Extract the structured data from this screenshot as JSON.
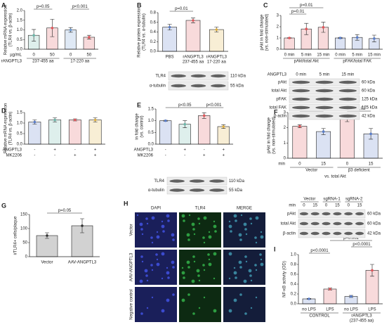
{
  "panel_labels": [
    "A",
    "B",
    "C",
    "D",
    "E",
    "F",
    "G",
    "H",
    "I"
  ],
  "chart_data": [
    {
      "type": "bar",
      "y_label": [
        "Relative mRNA expression",
        "(TLR4 vs. β-actin)"
      ],
      "categories": [
        "0",
        "50",
        "0",
        "50"
      ],
      "cat_label": "µg/mL",
      "groups": [
        "237-455 aa",
        "17-220 aa"
      ],
      "group_label": "rANGPTL3",
      "values": [
        0.72,
        1.1,
        1.0,
        0.62
      ],
      "errors": [
        0.3,
        0.45,
        0.12,
        0.1
      ],
      "colors": [
        "#6bb5a8",
        "#e0565b",
        "#6d9bd1",
        "#e0565b"
      ],
      "ylim": [
        0,
        2
      ],
      "yticks": [
        {
          "value": 0,
          "label": "0.0"
        },
        0.5,
        {
          "value": 1,
          "label": "1.0"
        },
        1.5,
        {
          "value": 2,
          "label": "2.0"
        }
      ],
      "annotations": [
        "p=0.05",
        "p<0.001"
      ]
    },
    {
      "type": "bar",
      "y_label": [
        "Relative protein expression",
        "(TLR4 vs. α-tubulin)"
      ],
      "categories": [
        [
          "PBS"
        ],
        [
          "rANGPTL3",
          "237-455 aa"
        ],
        [
          "rANGPTL3",
          "17-220 aa"
        ]
      ],
      "values": [
        0.5,
        0.64,
        0.45
      ],
      "errors": [
        0.06,
        0.05,
        0.05
      ],
      "colors": [
        "#5a7dc8",
        "#e0565b",
        "#e0b040"
      ],
      "ylim": [
        0,
        0.8
      ],
      "yticks": [
        {
          "value": 0,
          "label": "0.0"
        },
        0.2,
        0.4,
        0.6,
        0.8
      ],
      "annotations": [
        "p=0.01"
      ]
    },
    {
      "type": "bar",
      "y_label": [
        "pAkt in fold change",
        "(vs. non-stimulated)"
      ],
      "categories": [
        "0 min",
        "5 min",
        "15 min",
        "0 min",
        "5 min",
        "15 min"
      ],
      "groups": [
        "pAkt/total Akt",
        "pFAK/total FAK"
      ],
      "values": [
        1,
        1.8,
        1.95,
        1.0,
        1.05,
        0.95
      ],
      "errors": [
        0.02,
        0.5,
        0.45,
        0.05,
        0.25,
        0.3
      ],
      "colors": [
        "#e0565b",
        "#e0565b",
        "#e0565b",
        "#5a7dc8",
        "#5a7dc8",
        "#5a7dc8"
      ],
      "ylim": [
        0,
        3
      ],
      "yticks": [
        0,
        1,
        2,
        3
      ],
      "annotations": [
        "p=0.01",
        "p=0.01"
      ]
    },
    {
      "type": "bar",
      "y_label": [
        "Relative mRNA expression",
        "(TLR4 vs. β-actin)"
      ],
      "values": [
        1.05,
        1.15,
        1.15,
        1.15
      ],
      "errors": [
        0.1,
        0.1,
        0.05,
        0.1
      ],
      "colors": [
        "#5a7dc8",
        "#6bb5a8",
        "#e0565b",
        "#e0b040"
      ],
      "ylim": [
        0,
        1.5
      ],
      "yticks": [
        {
          "value": 0,
          "label": "0.0"
        },
        0.5,
        {
          "value": 1,
          "label": "1.0"
        },
        1.5
      ],
      "rows": [
        {
          "label": "ANGPTL3",
          "cells": [
            "-",
            "+",
            "-",
            "+"
          ]
        },
        {
          "label": "MK2206",
          "cells": [
            "-",
            "-",
            "+",
            "+"
          ]
        }
      ],
      "annotations": []
    },
    {
      "type": "bar",
      "y_label": [
        "in fold change",
        "(vs. control)"
      ],
      "values": [
        1.0,
        0.85,
        1.22,
        0.75
      ],
      "errors": [
        0.02,
        0.15,
        0.12,
        0.08
      ],
      "colors": [
        "#5a7dc8",
        "#6bb5a8",
        "#e0565b",
        "#e0b040"
      ],
      "ylim": [
        0,
        1.5
      ],
      "yticks": [
        {
          "value": 0,
          "label": "0.0"
        },
        0.5,
        {
          "value": 1,
          "label": "1.0"
        },
        1.5
      ],
      "rows": [
        {
          "label": "ANGPTL3",
          "cells": [
            "-",
            "+",
            "-",
            "+"
          ]
        },
        {
          "label": "MK2206",
          "cells": [
            "-",
            "-",
            "+",
            "+"
          ]
        }
      ],
      "annotations": [
        "p<0.05",
        "p<0.001"
      ]
    },
    {
      "type": "bar",
      "y_label": [
        "pAkt in fold change",
        "(vs. non-stimulated)"
      ],
      "categories": [
        "0",
        "15",
        "0",
        "15"
      ],
      "cat_label": "min",
      "groups": [
        "Vector",
        "β3 deficient"
      ],
      "subtitle": "vs. total Akt",
      "values": [
        2.1,
        1.75,
        2.65,
        1.6
      ],
      "errors": [
        0.1,
        0.2,
        0.25,
        0.35
      ],
      "colors": [
        "#e0565b",
        "#5a7dc8",
        "#e0565b",
        "#5a7dc8"
      ],
      "ylim": [
        0,
        3
      ],
      "yticks": [
        0,
        1,
        2,
        3
      ],
      "annotations": [
        "p=0.02",
        "p=0.02"
      ]
    },
    {
      "type": "bar",
      "y_label": [
        "#TLR4+ cells/plaque"
      ],
      "categories": [
        "Vector",
        "AAV-ANGPTL3"
      ],
      "values": [
        75,
        110
      ],
      "errors": [
        10,
        25
      ],
      "colors": [
        "#333333",
        "#333333"
      ],
      "ylim": [
        0,
        150
      ],
      "yticks": [
        0,
        50,
        100,
        150
      ],
      "annotations": [
        "p=0.05"
      ]
    },
    {
      "type": "bar",
      "y_label": [
        "NF-κB activity (OD)"
      ],
      "categories": [
        "no LPS",
        "LPS",
        "no LPS",
        "LPS"
      ],
      "groups": [
        "CONTROL",
        [
          "rANGPTL3",
          "(237-455 aa)"
        ]
      ],
      "values": [
        0.1,
        0.3,
        0.15,
        0.68
      ],
      "errors": [
        0.01,
        0.02,
        0.02,
        0.12
      ],
      "colors": [
        "#5a7dc8",
        "#e0565b",
        "#5a7dc8",
        "#e0565b"
      ],
      "ylim": [
        0,
        1
      ],
      "yticks": [
        {
          "value": 0,
          "label": "0.0"
        },
        0.2,
        0.4,
        0.6,
        0.8,
        {
          "value": 1,
          "label": "1.0"
        }
      ],
      "annotations": [
        "p<0.0001",
        "p=0.002",
        "p<0.0001"
      ]
    }
  ],
  "blots": [
    {
      "rows": [
        {
          "label": "TLR4",
          "size": "110 kDa"
        },
        {
          "label": "α-tubulin",
          "size": "55 kDa"
        }
      ]
    },
    {
      "header_label": "ANGPTL3",
      "columns": [
        "0 min",
        "5 min",
        "15 min"
      ],
      "rows": [
        {
          "label": "pAkt",
          "size": "60 kDa"
        },
        {
          "label": "total Akt",
          "size": "60 kDa"
        },
        {
          "label": "pFAK",
          "size": "125 kDa"
        },
        {
          "label": "total FAK",
          "size": "125 kDa"
        },
        {
          "label": "β-actin",
          "size": "42 kDa"
        }
      ]
    },
    {
      "rows": [
        {
          "label": "TLR4",
          "size": "110 kDa"
        },
        {
          "label": "α-tubulin",
          "size": "55 kDa"
        }
      ]
    },
    {
      "header_label": "min",
      "groups": [
        "Vector",
        "sgRNA-1",
        "sgRNA-2"
      ],
      "columns": [
        "0",
        "15",
        "0",
        "15",
        "0",
        "15"
      ],
      "rows": [
        {
          "label": "pAkt",
          "size": "60 kDa"
        },
        {
          "label": "total Akt",
          "size": "60 kDa"
        },
        {
          "label": "β-actin",
          "size": "42 kDa"
        }
      ]
    }
  ],
  "images": {
    "columns": [
      "DAPI",
      "TLR4",
      "MERGE"
    ],
    "rows": [
      "Vector",
      "AAV-ANGPTL3",
      "Negative control"
    ]
  }
}
